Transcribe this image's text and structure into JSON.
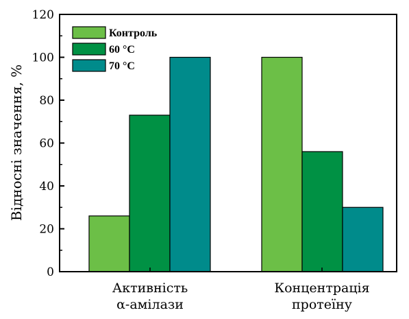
{
  "chart_data": {
    "type": "bar",
    "ylabel": "Відносні значення, %",
    "ylim": [
      0,
      120
    ],
    "yticks": [
      0,
      20,
      40,
      60,
      80,
      100,
      120
    ],
    "grid": false,
    "legend_position": "top-left",
    "categories": [
      {
        "lines": [
          "Активність",
          "α-амілази"
        ]
      },
      {
        "lines": [
          "Концентрація",
          "протеїну"
        ]
      }
    ],
    "series": [
      {
        "name": "Контроль",
        "color": "#6cbf47",
        "values": [
          26,
          100
        ]
      },
      {
        "name": "60 °C",
        "color": "#009144",
        "values": [
          73,
          56
        ]
      },
      {
        "name": "70 °C",
        "color": "#008b8b",
        "values": [
          100,
          30
        ]
      }
    ]
  }
}
